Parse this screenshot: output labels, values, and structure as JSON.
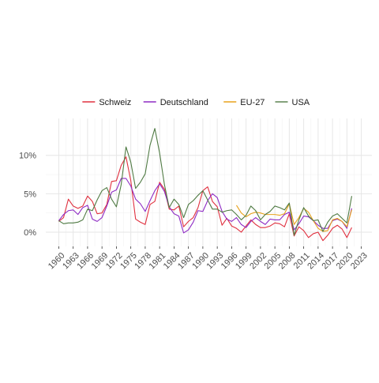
{
  "chart_data": {
    "type": "line",
    "title": "",
    "xlabel": "",
    "ylabel": "",
    "xlim": [
      1957.3,
      2025.2
    ],
    "ylim": [
      -1.85,
      14.8
    ],
    "x_ticks": [
      1960,
      1963,
      1966,
      1969,
      1972,
      1975,
      1978,
      1981,
      1984,
      1987,
      1990,
      1993,
      1996,
      1999,
      2002,
      2005,
      2008,
      2011,
      2014,
      2017,
      2020,
      2023
    ],
    "y_ticks": [
      {
        "value": 0,
        "label": "0%"
      },
      {
        "value": 5,
        "label": "5%"
      },
      {
        "value": 10,
        "label": "10%"
      }
    ],
    "grid": true,
    "legend_position": "top",
    "series": [
      {
        "name": "Schweiz",
        "color": "#e0303f",
        "x": [
          1960,
          1961,
          1962,
          1963,
          1964,
          1965,
          1966,
          1967,
          1968,
          1969,
          1970,
          1971,
          1972,
          1973,
          1974,
          1975,
          1976,
          1977,
          1978,
          1979,
          1980,
          1981,
          1982,
          1983,
          1984,
          1985,
          1986,
          1987,
          1988,
          1989,
          1990,
          1991,
          1992,
          1993,
          1994,
          1995,
          1996,
          1997,
          1998,
          1999,
          2000,
          2001,
          2002,
          2003,
          2004,
          2005,
          2006,
          2007,
          2008,
          2009,
          2010,
          2011,
          2012,
          2013,
          2014,
          2015,
          2016,
          2017,
          2018,
          2019,
          2020,
          2021
        ],
        "values": [
          1.4,
          1.9,
          4.3,
          3.4,
          3.1,
          3.4,
          4.7,
          4.0,
          2.4,
          2.5,
          3.6,
          6.6,
          6.7,
          8.7,
          9.8,
          6.7,
          1.7,
          1.3,
          1.0,
          3.6,
          4.0,
          6.5,
          5.6,
          3.0,
          2.9,
          3.4,
          0.7,
          1.4,
          1.9,
          3.2,
          5.4,
          5.9,
          4.0,
          3.3,
          0.9,
          1.8,
          0.8,
          0.5,
          0.0,
          0.8,
          1.6,
          1.0,
          0.6,
          0.6,
          0.8,
          1.2,
          1.1,
          0.7,
          2.4,
          -0.5,
          0.7,
          0.2,
          -0.7,
          -0.2,
          0.0,
          -1.1,
          -0.4,
          0.5,
          0.9,
          0.4,
          -0.7,
          0.6
        ]
      },
      {
        "name": "Deutschland",
        "color": "#8e2bc4",
        "x": [
          1960,
          1961,
          1962,
          1963,
          1964,
          1965,
          1966,
          1967,
          1968,
          1969,
          1970,
          1971,
          1972,
          1973,
          1974,
          1975,
          1976,
          1977,
          1978,
          1979,
          1980,
          1981,
          1982,
          1983,
          1984,
          1985,
          1986,
          1987,
          1988,
          1989,
          1990,
          1991,
          1992,
          1993,
          1994,
          1995,
          1996,
          1997,
          1998,
          1999,
          2000,
          2001,
          2002,
          2003,
          2004,
          2005,
          2006,
          2007,
          2008,
          2009,
          2010,
          2011,
          2012,
          2013,
          2014,
          2015,
          2016,
          2017,
          2018,
          2019,
          2020,
          2021
        ],
        "values": [
          1.5,
          2.3,
          2.8,
          2.9,
          2.3,
          3.2,
          3.5,
          1.7,
          1.4,
          1.9,
          3.4,
          5.2,
          5.5,
          7.0,
          7.0,
          6.0,
          4.3,
          3.7,
          2.7,
          4.1,
          5.4,
          6.3,
          5.3,
          3.3,
          2.4,
          2.1,
          -0.1,
          0.3,
          1.3,
          2.8,
          2.7,
          4.1,
          5.0,
          4.5,
          2.7,
          1.7,
          1.4,
          1.9,
          1.0,
          0.6,
          1.4,
          1.9,
          1.4,
          1.0,
          1.7,
          1.6,
          1.6,
          2.3,
          2.6,
          0.3,
          1.1,
          2.1,
          2.0,
          1.5,
          0.9,
          0.5,
          0.5,
          1.5,
          1.7,
          1.4,
          0.5,
          3.1
        ]
      },
      {
        "name": "EU-27",
        "color": "#e8a21c",
        "x": [
          1997,
          1998,
          1999,
          2000,
          2001,
          2002,
          2003,
          2004,
          2005,
          2006,
          2007,
          2008,
          2009,
          2010,
          2011,
          2012,
          2013,
          2014,
          2015,
          2016,
          2017,
          2018,
          2019,
          2020,
          2021
        ],
        "values": [
          3.5,
          2.5,
          2.0,
          2.4,
          2.6,
          2.5,
          2.3,
          2.3,
          2.3,
          2.2,
          2.4,
          3.7,
          1.0,
          1.9,
          3.1,
          2.6,
          1.5,
          0.5,
          0.1,
          0.2,
          1.6,
          1.8,
          1.4,
          0.7,
          2.9
        ]
      },
      {
        "name": "USA",
        "color": "#4f7a43",
        "x": [
          1960,
          1961,
          1962,
          1963,
          1964,
          1965,
          1966,
          1967,
          1968,
          1969,
          1970,
          1971,
          1972,
          1973,
          1974,
          1975,
          1976,
          1977,
          1978,
          1979,
          1980,
          1981,
          1982,
          1983,
          1984,
          1985,
          1986,
          1987,
          1988,
          1989,
          1990,
          1991,
          1992,
          1993,
          1994,
          1995,
          1996,
          1997,
          1998,
          1999,
          2000,
          2001,
          2002,
          2003,
          2004,
          2005,
          2006,
          2007,
          2008,
          2009,
          2010,
          2011,
          2012,
          2013,
          2014,
          2015,
          2016,
          2017,
          2018,
          2019,
          2020,
          2021
        ],
        "values": [
          1.5,
          1.1,
          1.2,
          1.2,
          1.3,
          1.6,
          3.0,
          2.8,
          4.2,
          5.4,
          5.8,
          4.3,
          3.3,
          6.2,
          11.1,
          9.1,
          5.7,
          6.5,
          7.6,
          11.3,
          13.5,
          10.3,
          6.2,
          3.2,
          4.3,
          3.6,
          1.9,
          3.6,
          4.1,
          4.8,
          5.4,
          4.2,
          3.0,
          3.0,
          2.6,
          2.8,
          2.9,
          2.3,
          1.6,
          2.2,
          3.4,
          2.8,
          1.6,
          2.3,
          2.7,
          3.4,
          3.2,
          2.9,
          3.8,
          -0.4,
          1.6,
          3.2,
          2.1,
          1.5,
          1.6,
          0.1,
          1.3,
          2.1,
          2.4,
          1.8,
          1.2,
          4.7
        ]
      }
    ]
  }
}
